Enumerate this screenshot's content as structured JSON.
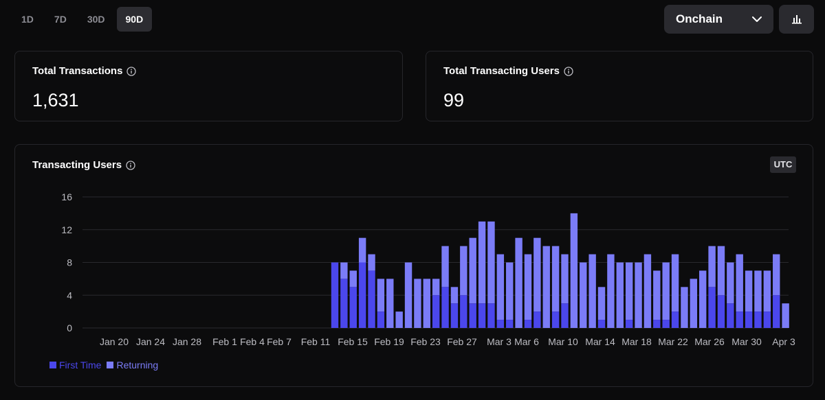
{
  "range_tabs": [
    "1D",
    "7D",
    "30D",
    "90D"
  ],
  "active_range": "90D",
  "source_select": {
    "value": "Onchain"
  },
  "stats": {
    "total_transactions": {
      "label": "Total Transactions",
      "value": "1,631"
    },
    "total_users": {
      "label": "Total Transacting Users",
      "value": "99"
    }
  },
  "chart": {
    "title": "Transacting Users",
    "timezone": "UTC"
  },
  "colors": {
    "first_time": "#4b47ec",
    "returning": "#7b7cf7",
    "grid": "#2a2a2e",
    "axis_text": "#bdbdc3"
  },
  "chart_data": {
    "type": "bar",
    "stacked": true,
    "ylim": [
      0,
      16
    ],
    "yticks": [
      0,
      4,
      8,
      12,
      16
    ],
    "grid": true,
    "legend_position": "bottom-left",
    "x_tick_labels": [
      "Jan 20",
      "Jan 24",
      "Jan 28",
      "Feb 1",
      "Feb 4",
      "Feb 7",
      "Feb 11",
      "Feb 15",
      "Feb 19",
      "Feb 23",
      "Feb 27",
      "Mar 3",
      "Mar 6",
      "Mar 10",
      "Mar 14",
      "Mar 18",
      "Mar 22",
      "Mar 26",
      "Mar 30",
      "Apr 3"
    ],
    "categories": [
      "Feb 13",
      "Feb 14",
      "Feb 15",
      "Feb 16",
      "Feb 17",
      "Feb 18",
      "Feb 19",
      "Feb 20",
      "Feb 21",
      "Feb 22",
      "Feb 23",
      "Feb 24",
      "Feb 25",
      "Feb 26",
      "Feb 27",
      "Feb 28",
      "Mar 1",
      "Mar 2",
      "Mar 3",
      "Mar 4",
      "Mar 5",
      "Mar 6",
      "Mar 7",
      "Mar 8",
      "Mar 9",
      "Mar 10",
      "Mar 11",
      "Mar 12",
      "Mar 13",
      "Mar 14",
      "Mar 15",
      "Mar 16",
      "Mar 17",
      "Mar 18",
      "Mar 19",
      "Mar 20",
      "Mar 21",
      "Mar 22",
      "Mar 23",
      "Mar 24",
      "Mar 25",
      "Mar 26",
      "Mar 27",
      "Mar 28",
      "Mar 29",
      "Mar 30",
      "Mar 31",
      "Apr 1",
      "Apr 2",
      "Apr 3"
    ],
    "series": [
      {
        "name": "First Time",
        "values": [
          8,
          6,
          5,
          8,
          7,
          2,
          0,
          0,
          0,
          0,
          0,
          4,
          5,
          3,
          4,
          3,
          3,
          3,
          1,
          1,
          0,
          1,
          2,
          0,
          2,
          3,
          0,
          0,
          0,
          1,
          0,
          0,
          1,
          0,
          0,
          1,
          1,
          2,
          0,
          0,
          0,
          5,
          4,
          3,
          2,
          2,
          2,
          2,
          4,
          0
        ]
      },
      {
        "name": "Returning",
        "values": [
          0,
          2,
          2,
          3,
          2,
          4,
          6,
          2,
          8,
          6,
          6,
          2,
          5,
          2,
          6,
          8,
          10,
          10,
          8,
          7,
          11,
          8,
          9,
          10,
          8,
          6,
          14,
          8,
          9,
          4,
          9,
          8,
          7,
          8,
          9,
          6,
          7,
          7,
          5,
          6,
          7,
          5,
          6,
          5,
          7,
          5,
          5,
          5,
          5,
          3
        ]
      }
    ]
  },
  "legend": {
    "first_time": "First Time",
    "returning": "Returning"
  }
}
